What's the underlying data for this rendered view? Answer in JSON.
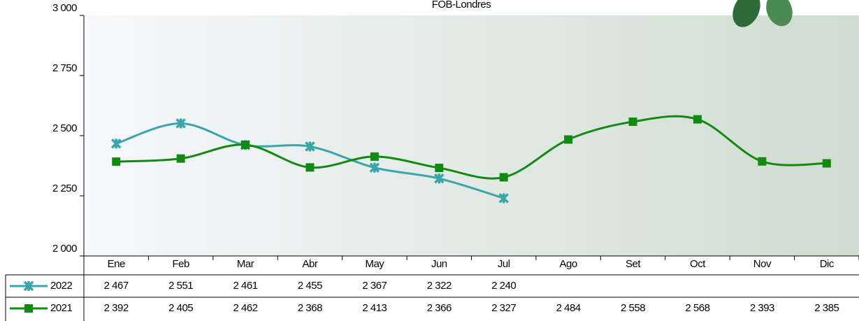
{
  "chart_data": {
    "type": "line",
    "title": "FOB-Londres",
    "categories": [
      "Ene",
      "Feb",
      "Mar",
      "Abr",
      "May",
      "Jun",
      "Jul",
      "Ago",
      "Set",
      "Oct",
      "Nov",
      "Dic"
    ],
    "series": [
      {
        "name": "2022",
        "color": "#3aa6a8",
        "marker": "x",
        "values": [
          2467,
          2551,
          2461,
          2455,
          2367,
          2322,
          2240,
          null,
          null,
          null,
          null,
          null
        ],
        "value_labels": [
          "2 467",
          "2 551",
          "2 461",
          "2 455",
          "2 367",
          "2 322",
          "2 240",
          null,
          null,
          null,
          null,
          null
        ]
      },
      {
        "name": "2021",
        "color": "#128a12",
        "marker": "square",
        "values": [
          2392,
          2405,
          2462,
          2368,
          2413,
          2366,
          2327,
          2484,
          2558,
          2568,
          2393,
          2385
        ],
        "value_labels": [
          "2 392",
          "2 405",
          "2 462",
          "2 368",
          "2 413",
          "2 366",
          "2 327",
          "2 484",
          "2 558",
          "2 568",
          "2 393",
          "2 385"
        ]
      }
    ],
    "ylim": [
      2000,
      3000
    ],
    "yticks": [
      {
        "value": 2000,
        "label": "2 000"
      },
      {
        "value": 2250,
        "label": "2 250"
      },
      {
        "value": 2500,
        "label": "2 500"
      },
      {
        "value": 2750,
        "label": "2 750"
      },
      {
        "value": 3000,
        "label": "3 000"
      }
    ],
    "grid": false
  }
}
